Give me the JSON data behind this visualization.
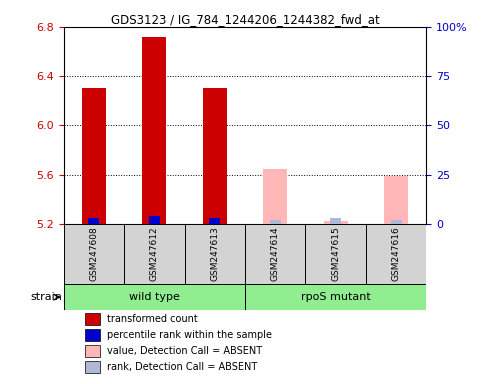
{
  "title": "GDS3123 / IG_784_1244206_1244382_fwd_at",
  "samples": [
    "GSM247608",
    "GSM247612",
    "GSM247613",
    "GSM247614",
    "GSM247615",
    "GSM247616"
  ],
  "group_spans": [
    [
      0,
      2,
      "wild type"
    ],
    [
      3,
      5,
      "rpoS mutant"
    ]
  ],
  "group_color": "#90EE90",
  "group_label": "strain",
  "ylim_left": [
    5.2,
    6.8
  ],
  "ylim_right": [
    0,
    100
  ],
  "yticks_left": [
    5.2,
    5.6,
    6.0,
    6.4,
    6.8
  ],
  "yticks_right": [
    0,
    25,
    50,
    75,
    100
  ],
  "ytick_labels_right": [
    "0",
    "25",
    "50",
    "75",
    "100%"
  ],
  "base_value": 5.2,
  "transformed_count": [
    6.3,
    6.72,
    6.3,
    5.2,
    5.2,
    5.2
  ],
  "percentile_rank": [
    3,
    4,
    3,
    0,
    0,
    0
  ],
  "value_absent": [
    5.2,
    5.2,
    5.2,
    5.65,
    5.22,
    5.59
  ],
  "rank_absent": [
    0,
    0,
    0,
    2,
    3,
    2
  ],
  "is_absent": [
    false,
    false,
    false,
    true,
    true,
    true
  ],
  "color_transformed": "#cc0000",
  "color_rank": "#0000cc",
  "color_value_absent": "#ffb6b6",
  "color_rank_absent": "#b0b8d8",
  "sample_box_color": "#d3d3d3",
  "axis_color_left": "#cc0000",
  "axis_color_right": "#0000cc",
  "legend": [
    {
      "label": "transformed count",
      "color": "#cc0000"
    },
    {
      "label": "percentile rank within the sample",
      "color": "#0000cc"
    },
    {
      "label": "value, Detection Call = ABSENT",
      "color": "#ffb6b6"
    },
    {
      "label": "rank, Detection Call = ABSENT",
      "color": "#b0b8d8"
    }
  ]
}
